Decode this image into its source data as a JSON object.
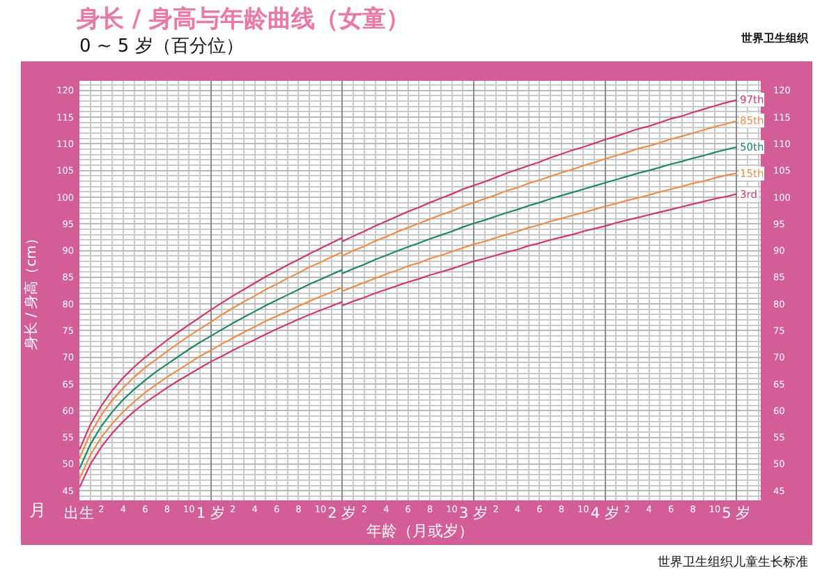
{
  "chart_data": {
    "type": "line",
    "title": "身长 / 身高与年龄曲线（女童）",
    "subtitle": "0 ~ 5 岁（百分位）",
    "xlabel": "年龄（月或岁）",
    "ylabel": "身长 / 身高（cm）",
    "annotations": [
      "月",
      "世界卫生组织",
      "世界卫生组织儿童生长标准"
    ],
    "categories": [
      "出生",
      null,
      "2",
      null,
      "4",
      null,
      "6",
      null,
      "8",
      null,
      "10",
      null,
      "1 岁",
      null,
      "2",
      null,
      "4",
      null,
      "6",
      null,
      "8",
      null,
      "10",
      null,
      "2 岁",
      null,
      "2",
      null,
      "4",
      null,
      "6",
      null,
      "8",
      null,
      "10",
      null,
      "3 岁",
      null,
      "2",
      null,
      "4",
      null,
      "6",
      null,
      "8",
      null,
      "10",
      null,
      "4 岁",
      null,
      "2",
      null,
      "4",
      null,
      "6",
      null,
      "8",
      null,
      "10",
      null,
      "5 岁"
    ],
    "series": [
      {
        "name": "97th",
        "color": "#d1386a",
        "values": [
          null,
          null,
          null,
          null,
          null,
          null,
          null,
          null,
          null,
          null,
          null,
          null,
          null,
          null,
          null,
          null,
          null,
          null,
          null,
          null,
          null,
          null,
          null,
          null,
          91.7,
          92.7,
          93.6,
          94.6,
          95.5,
          96.4,
          97.3,
          98.1,
          99.0,
          99.8,
          100.6,
          101.5,
          102.2,
          102.9,
          103.7,
          104.5,
          105.2,
          105.9,
          106.6,
          107.4,
          108.1,
          108.8,
          109.4,
          110.1,
          110.8,
          111.4,
          112.1,
          112.8,
          113.3,
          114.0,
          114.7,
          115.2,
          115.9,
          116.5,
          117.1,
          117.7,
          118.2
        ]
      },
      {
        "name": "85th",
        "color": "#ee8c4a",
        "values": [
          null,
          null,
          null,
          null,
          null,
          null,
          null,
          null,
          null,
          null,
          null,
          null,
          null,
          null,
          null,
          null,
          null,
          null,
          null,
          null,
          null,
          null,
          null,
          null,
          89.0,
          90.0,
          90.8,
          91.8,
          92.6,
          93.5,
          94.3,
          95.1,
          95.9,
          96.7,
          97.4,
          98.3,
          99.0,
          99.7,
          100.4,
          101.2,
          101.8,
          102.6,
          103.2,
          103.9,
          104.6,
          105.2,
          105.9,
          106.5,
          107.2,
          107.8,
          108.4,
          109.1,
          109.6,
          110.2,
          110.9,
          111.4,
          112.0,
          112.6,
          113.2,
          113.7,
          114.3
        ]
      },
      {
        "name": "50th",
        "color": "#1e8a5c",
        "values": [
          null,
          null,
          null,
          null,
          null,
          null,
          null,
          null,
          null,
          null,
          null,
          null,
          null,
          null,
          null,
          null,
          null,
          null,
          null,
          null,
          null,
          null,
          null,
          null,
          85.7,
          86.6,
          87.4,
          88.3,
          89.1,
          89.9,
          90.7,
          91.4,
          92.2,
          92.9,
          93.6,
          94.4,
          95.1,
          95.7,
          96.4,
          97.1,
          97.7,
          98.4,
          99.0,
          99.7,
          100.3,
          100.9,
          101.5,
          102.1,
          102.7,
          103.3,
          103.9,
          104.5,
          105.0,
          105.6,
          106.2,
          106.7,
          107.3,
          107.8,
          108.4,
          108.9,
          109.4
        ]
      },
      {
        "name": "15th",
        "color": "#ee8c4a",
        "values": [
          null,
          null,
          null,
          null,
          null,
          null,
          null,
          null,
          null,
          null,
          null,
          null,
          null,
          null,
          null,
          null,
          null,
          null,
          null,
          null,
          null,
          null,
          null,
          null,
          82.4,
          83.2,
          84.0,
          84.8,
          85.6,
          86.3,
          87.1,
          87.7,
          88.5,
          89.1,
          89.8,
          90.5,
          91.2,
          91.7,
          92.4,
          93.0,
          93.6,
          94.3,
          94.8,
          95.5,
          96.0,
          96.6,
          97.1,
          97.7,
          98.3,
          98.8,
          99.4,
          99.9,
          100.4,
          101.0,
          101.5,
          102.0,
          102.6,
          103.0,
          103.6,
          104.1,
          104.5
        ]
      },
      {
        "name": "3rd",
        "color": "#d1386a",
        "values": [
          null,
          null,
          null,
          null,
          null,
          null,
          null,
          null,
          null,
          null,
          null,
          null,
          null,
          null,
          null,
          null,
          null,
          null,
          null,
          null,
          null,
          null,
          null,
          null,
          79.7,
          80.5,
          81.2,
          82.0,
          82.7,
          83.4,
          84.1,
          84.7,
          85.4,
          86.0,
          86.6,
          87.3,
          88.0,
          88.5,
          89.1,
          89.7,
          90.2,
          90.9,
          91.4,
          92.0,
          92.5,
          93.0,
          93.6,
          94.1,
          94.6,
          95.2,
          95.7,
          96.2,
          96.7,
          97.2,
          97.7,
          98.2,
          98.7,
          99.2,
          99.7,
          100.1,
          100.6
        ]
      },
      {
        "color": "#d1386a",
        "values": [
          52.7,
          57.4,
          60.9,
          63.8,
          66.2,
          68.2,
          70.0,
          71.6,
          73.2,
          74.7,
          76.1,
          77.5,
          78.9,
          80.2,
          81.5,
          82.7,
          83.9,
          85.1,
          86.2,
          87.3,
          88.3,
          89.4,
          90.4,
          91.4,
          92.4,
          null,
          null,
          null,
          null,
          null,
          null,
          null,
          null,
          null,
          null,
          null,
          null,
          null,
          null,
          null,
          null,
          null,
          null,
          null,
          null,
          null,
          null,
          null,
          null,
          null,
          null,
          null,
          null,
          null,
          null,
          null,
          null,
          null,
          null,
          null,
          null
        ]
      },
      {
        "color": "#ee8c4a",
        "values": [
          51.1,
          55.7,
          59.2,
          62.0,
          64.3,
          66.3,
          68.1,
          69.6,
          71.1,
          72.6,
          74.0,
          75.3,
          76.6,
          78.0,
          79.2,
          80.4,
          81.5,
          82.7,
          83.7,
          84.8,
          85.8,
          86.9,
          87.8,
          88.8,
          89.7,
          null,
          null,
          null,
          null,
          null,
          null,
          null,
          null,
          null,
          null,
          null,
          null,
          null,
          null,
          null,
          null,
          null,
          null,
          null,
          null,
          null,
          null,
          null,
          null,
          null,
          null,
          null,
          null,
          null,
          null,
          null,
          null,
          null,
          null,
          null,
          null
        ]
      },
      {
        "color": "#1e8a5c",
        "values": [
          49.1,
          53.7,
          57.1,
          59.8,
          62.1,
          64.0,
          65.7,
          67.3,
          68.7,
          70.1,
          71.5,
          72.8,
          74.0,
          75.2,
          76.4,
          77.5,
          78.6,
          79.7,
          80.7,
          81.7,
          82.7,
          83.7,
          84.6,
          85.5,
          86.4,
          null,
          null,
          null,
          null,
          null,
          null,
          null,
          null,
          null,
          null,
          null,
          null,
          null,
          null,
          null,
          null,
          null,
          null,
          null,
          null,
          null,
          null,
          null,
          null,
          null,
          null,
          null,
          null,
          null,
          null,
          null,
          null,
          null,
          null,
          null,
          null
        ]
      },
      {
        "color": "#ee8c4a",
        "values": [
          47.2,
          51.7,
          55.0,
          57.6,
          59.8,
          61.7,
          63.4,
          64.9,
          66.3,
          67.6,
          68.9,
          70.2,
          71.3,
          72.5,
          73.6,
          74.7,
          75.7,
          76.8,
          77.7,
          78.6,
          79.6,
          80.5,
          81.4,
          82.2,
          83.1,
          null,
          null,
          null,
          null,
          null,
          null,
          null,
          null,
          null,
          null,
          null,
          null,
          null,
          null,
          null,
          null,
          null,
          null,
          null,
          null,
          null,
          null,
          null,
          null,
          null,
          null,
          null,
          null,
          null,
          null,
          null,
          null,
          null,
          null,
          null,
          null
        ]
      },
      {
        "color": "#d1386a",
        "values": [
          45.6,
          50.0,
          53.2,
          55.8,
          58.0,
          59.9,
          61.5,
          62.9,
          64.3,
          65.6,
          66.8,
          68.0,
          69.2,
          70.2,
          71.3,
          72.3,
          73.3,
          74.3,
          75.3,
          76.2,
          77.1,
          78.0,
          78.8,
          79.6,
          80.4,
          null,
          null,
          null,
          null,
          null,
          null,
          null,
          null,
          null,
          null,
          null,
          null,
          null,
          null,
          null,
          null,
          null,
          null,
          null,
          null,
          null,
          null,
          null,
          null,
          null,
          null,
          null,
          null,
          null,
          null,
          null,
          null,
          null,
          null,
          null,
          null
        ]
      }
    ],
    "ylim": [
      43.2,
      121.8
    ],
    "yticks": [
      45,
      50,
      55,
      60,
      65,
      70,
      75,
      80,
      85,
      90,
      95,
      100,
      105,
      110,
      115,
      120
    ],
    "y2lim": [
      43.2,
      121.8
    ],
    "y2ticks": [
      45,
      50,
      55,
      60,
      65,
      70,
      75,
      80,
      85,
      90,
      95,
      100,
      105,
      110,
      115,
      120
    ],
    "grid": true
  }
}
